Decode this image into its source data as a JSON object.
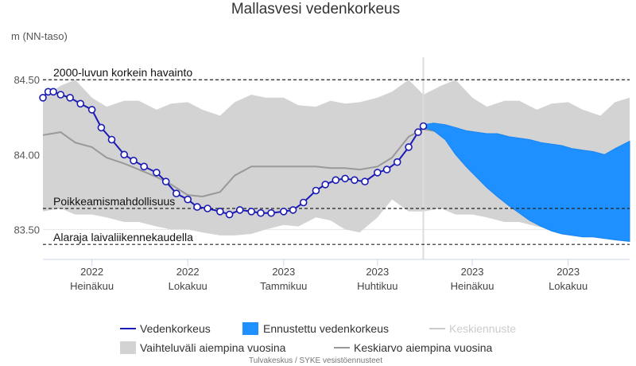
{
  "chart_data": {
    "type": "line",
    "title": "Mallasvesi vedenkorkeus",
    "ylabel": "m (NN-taso)",
    "ylim": [
      83.3,
      84.65
    ],
    "xlim": [
      "2022-05-15",
      "2023-11-29"
    ],
    "y_ticks": [
      "83.50",
      "84.00",
      "84.50"
    ],
    "x_ticks": [
      {
        "date": "2022-07-01",
        "year": "2022",
        "month": "Heinäkuu"
      },
      {
        "date": "2022-10-01",
        "year": "2022",
        "month": "Lokakuu"
      },
      {
        "date": "2023-01-01",
        "year": "2023",
        "month": "Tammikuu"
      },
      {
        "date": "2023-04-01",
        "year": "2023",
        "month": "Huhtikuu"
      },
      {
        "date": "2023-07-01",
        "year": "2023",
        "month": "Heinäkuu"
      },
      {
        "date": "2023-10-01",
        "year": "2023",
        "month": "Lokakuu"
      }
    ],
    "forecast_start": "2023-05-15",
    "reference_lines": [
      {
        "name": "2000-luvun korkein havainto",
        "value": 84.5
      },
      {
        "name": "Poikkeamismahdollisuus",
        "value": 83.64
      },
      {
        "name": "Alaraja laivaliikennekaudella",
        "value": 83.4
      }
    ],
    "series": [
      {
        "name": "Vedenkorkeus",
        "type": "line",
        "color": "#1a1ab4",
        "x": [
          "2022-05-15",
          "2022-05-20",
          "2022-05-25",
          "2022-06-01",
          "2022-06-10",
          "2022-06-20",
          "2022-07-01",
          "2022-07-10",
          "2022-07-20",
          "2022-08-01",
          "2022-08-10",
          "2022-08-20",
          "2022-09-01",
          "2022-09-10",
          "2022-09-20",
          "2022-10-01",
          "2022-10-10",
          "2022-10-20",
          "2022-11-01",
          "2022-11-10",
          "2022-11-20",
          "2022-12-01",
          "2022-12-10",
          "2022-12-20",
          "2023-01-01",
          "2023-01-10",
          "2023-01-20",
          "2023-02-01",
          "2023-02-10",
          "2023-02-20",
          "2023-03-01",
          "2023-03-10",
          "2023-03-20",
          "2023-04-01",
          "2023-04-10",
          "2023-04-20",
          "2023-05-01",
          "2023-05-10",
          "2023-05-15"
        ],
        "y": [
          84.38,
          84.42,
          84.42,
          84.4,
          84.38,
          84.34,
          84.3,
          84.18,
          84.1,
          84.0,
          83.96,
          83.92,
          83.88,
          83.82,
          83.74,
          83.7,
          83.65,
          83.64,
          83.62,
          83.6,
          83.63,
          83.62,
          83.61,
          83.61,
          83.62,
          83.63,
          83.68,
          83.76,
          83.8,
          83.83,
          83.84,
          83.83,
          83.82,
          83.88,
          83.9,
          83.95,
          84.05,
          84.15,
          84.19
        ]
      },
      {
        "name": "Ennustettu vedenkorkeus",
        "type": "arearange",
        "color": "#1e90ff",
        "x": [
          "2023-05-15",
          "2023-05-25",
          "2023-06-05",
          "2023-06-15",
          "2023-06-25",
          "2023-07-05",
          "2023-07-15",
          "2023-07-25",
          "2023-08-05",
          "2023-08-15",
          "2023-08-25",
          "2023-09-05",
          "2023-09-15",
          "2023-09-25",
          "2023-10-05",
          "2023-10-15",
          "2023-10-25",
          "2023-11-05",
          "2023-11-15",
          "2023-11-29"
        ],
        "low": [
          84.18,
          84.16,
          84.1,
          84.0,
          83.92,
          83.85,
          83.78,
          83.72,
          83.66,
          83.61,
          83.56,
          83.52,
          83.49,
          83.47,
          83.46,
          83.45,
          83.45,
          83.44,
          83.43,
          83.42
        ],
        "high": [
          84.2,
          84.21,
          84.2,
          84.18,
          84.16,
          84.15,
          84.14,
          84.14,
          84.12,
          84.11,
          84.1,
          84.08,
          84.07,
          84.06,
          84.04,
          84.03,
          84.02,
          84.0,
          84.04,
          84.09
        ]
      },
      {
        "name": "Keskiennuste",
        "type": "line",
        "color": "#cccccc",
        "visible": false
      },
      {
        "name": "Vaihteluväli aiempina vuosina",
        "type": "arearange",
        "color": "#d3d3d3",
        "x": [
          "2022-05-15",
          "2022-06-01",
          "2022-06-15",
          "2022-07-01",
          "2022-07-15",
          "2022-08-01",
          "2022-08-15",
          "2022-09-01",
          "2022-09-15",
          "2022-10-01",
          "2022-10-15",
          "2022-11-01",
          "2022-11-15",
          "2022-12-01",
          "2022-12-15",
          "2023-01-01",
          "2023-01-15",
          "2023-02-01",
          "2023-02-15",
          "2023-03-01",
          "2023-03-15",
          "2023-04-01",
          "2023-04-15",
          "2023-05-01",
          "2023-05-15",
          "2023-06-01",
          "2023-06-15",
          "2023-07-01",
          "2023-07-15",
          "2023-08-01",
          "2023-08-15",
          "2023-09-01",
          "2023-09-15",
          "2023-10-01",
          "2023-10-15",
          "2023-11-01",
          "2023-11-15",
          "2023-11-29"
        ],
        "low": [
          83.62,
          83.64,
          83.6,
          83.6,
          83.58,
          83.55,
          83.55,
          83.52,
          83.5,
          83.5,
          83.48,
          83.46,
          83.46,
          83.47,
          83.5,
          83.53,
          83.52,
          83.58,
          83.56,
          83.5,
          83.48,
          83.58,
          83.7,
          83.62,
          83.62,
          83.64,
          83.6,
          83.6,
          83.58,
          83.55,
          83.55,
          83.52,
          83.5,
          83.5,
          83.48,
          83.46,
          83.46,
          83.47
        ],
        "high": [
          84.38,
          84.46,
          84.5,
          84.38,
          84.32,
          84.36,
          84.36,
          84.3,
          84.34,
          84.35,
          84.3,
          84.26,
          84.35,
          84.4,
          84.38,
          84.38,
          84.33,
          84.32,
          84.36,
          84.34,
          84.35,
          84.38,
          84.42,
          84.5,
          84.4,
          84.46,
          84.5,
          84.38,
          84.32,
          84.36,
          84.36,
          84.3,
          84.34,
          84.35,
          84.3,
          84.26,
          84.35,
          84.38
        ]
      },
      {
        "name": "Keskiarvo aiempina vuosina",
        "type": "line",
        "color": "#999999",
        "x": [
          "2022-05-15",
          "2022-06-01",
          "2022-06-15",
          "2022-07-01",
          "2022-07-15",
          "2022-08-01",
          "2022-08-15",
          "2022-09-01",
          "2022-09-15",
          "2022-10-01",
          "2022-10-15",
          "2022-11-01",
          "2022-11-15",
          "2022-12-01",
          "2022-12-15",
          "2023-01-01",
          "2023-01-15",
          "2023-02-01",
          "2023-02-15",
          "2023-03-01",
          "2023-03-15",
          "2023-04-01",
          "2023-04-15",
          "2023-05-01",
          "2023-05-15",
          "2023-06-01",
          "2023-06-15",
          "2023-07-01",
          "2023-07-15",
          "2023-08-01",
          "2023-08-15",
          "2023-09-01",
          "2023-09-15",
          "2023-10-01",
          "2023-10-15",
          "2023-11-01",
          "2023-11-15",
          "2023-11-29"
        ],
        "y": [
          84.13,
          84.15,
          84.08,
          84.05,
          83.98,
          83.94,
          83.9,
          83.85,
          83.8,
          83.73,
          83.72,
          83.75,
          83.86,
          83.92,
          83.92,
          83.92,
          83.92,
          83.92,
          83.91,
          83.91,
          83.9,
          83.92,
          83.98,
          84.12,
          84.17,
          84.15,
          84.08,
          84.02,
          83.95,
          83.9,
          83.86,
          83.82,
          83.78,
          83.74,
          83.72,
          83.71,
          83.72,
          83.72
        ]
      }
    ],
    "legend": {
      "position": "bottom"
    }
  },
  "credits": "Tulvakeskus / SYKE vesistöennusteet"
}
